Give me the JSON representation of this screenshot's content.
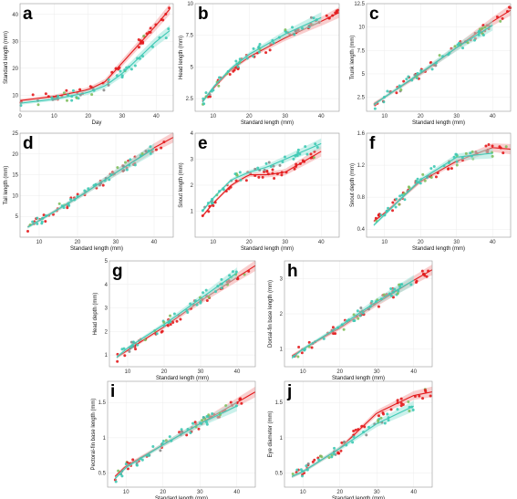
{
  "colors": {
    "red_series": "#e31a1c",
    "teal_series": "#3ec9b4",
    "red_band": "#f4a6a6",
    "teal_band": "#9fe6da",
    "green_marker": "#7fbf5f",
    "gray_marker": "#8c8c8c"
  },
  "chart_data": [
    {
      "id": "a",
      "type": "scatter",
      "xlabel": "Day",
      "ylabel": "Standard length (mm)",
      "xlim": [
        0,
        45
      ],
      "ylim": [
        4,
        44
      ],
      "xticks": [
        0,
        10,
        20,
        30,
        40
      ],
      "yticks": [
        10,
        20,
        30,
        40
      ],
      "series": [
        {
          "color": "red",
          "curve": [
            [
              0,
              8
            ],
            [
              10,
              9.5
            ],
            [
              20,
              12
            ],
            [
              25,
              15
            ],
            [
              30,
              22
            ],
            [
              35,
              29
            ],
            [
              40,
              36
            ],
            [
              44,
              42
            ]
          ]
        },
        {
          "color": "teal",
          "curve": [
            [
              0,
              7
            ],
            [
              10,
              8.5
            ],
            [
              20,
              11
            ],
            [
              25,
              13.5
            ],
            [
              30,
              18
            ],
            [
              35,
              24
            ],
            [
              40,
              30
            ],
            [
              44,
              34
            ]
          ]
        }
      ]
    },
    {
      "id": "b",
      "type": "scatter",
      "xlabel": "Standard length (mm)",
      "ylabel": "Head length (mm)",
      "xlim": [
        5,
        45
      ],
      "ylim": [
        1.5,
        10
      ],
      "xticks": [
        10,
        20,
        30,
        40
      ],
      "yticks": [
        2.5,
        5.0,
        7.5,
        10.0
      ],
      "series": [
        {
          "color": "red",
          "curve": [
            [
              7,
              2.3
            ],
            [
              10,
              3.3
            ],
            [
              15,
              4.8
            ],
            [
              20,
              5.8
            ],
            [
              30,
              7.3
            ],
            [
              40,
              8.6
            ],
            [
              45,
              9.3
            ]
          ]
        },
        {
          "color": "teal",
          "curve": [
            [
              7,
              2.2
            ],
            [
              10,
              3.4
            ],
            [
              15,
              4.9
            ],
            [
              20,
              6.0
            ],
            [
              30,
              7.6
            ],
            [
              40,
              8.9
            ]
          ]
        }
      ]
    },
    {
      "id": "c",
      "type": "scatter",
      "xlabel": "Standard length (mm)",
      "ylabel": "Trunk length (mm)",
      "xlim": [
        5,
        45
      ],
      "ylim": [
        1,
        12.5
      ],
      "xticks": [
        10,
        20,
        30,
        40
      ],
      "yticks": [
        2.5,
        5.0,
        7.5,
        10.0,
        12.5
      ],
      "series": [
        {
          "color": "red",
          "curve": [
            [
              7,
              1.8
            ],
            [
              10,
              2.5
            ],
            [
              20,
              5.0
            ],
            [
              30,
              7.8
            ],
            [
              40,
              10.6
            ],
            [
              45,
              11.8
            ]
          ]
        },
        {
          "color": "teal",
          "curve": [
            [
              7,
              1.7
            ],
            [
              10,
              2.5
            ],
            [
              20,
              5.1
            ],
            [
              30,
              7.8
            ],
            [
              40,
              10.2
            ]
          ]
        }
      ]
    },
    {
      "id": "d",
      "type": "scatter",
      "xlabel": "Standard length (mm)",
      "ylabel": "Tail length (mm)",
      "xlim": [
        5,
        45
      ],
      "ylim": [
        0,
        25
      ],
      "xticks": [
        10,
        20,
        30,
        40
      ],
      "yticks": [
        5,
        10,
        15,
        20,
        25
      ],
      "series": [
        {
          "color": "red",
          "curve": [
            [
              7,
              2.5
            ],
            [
              10,
              4.0
            ],
            [
              20,
              9.5
            ],
            [
              30,
              15.5
            ],
            [
              40,
              21.5
            ],
            [
              45,
              24
            ]
          ]
        },
        {
          "color": "teal",
          "curve": [
            [
              7,
              2.4
            ],
            [
              10,
              4.0
            ],
            [
              20,
              9.5
            ],
            [
              30,
              15.5
            ],
            [
              40,
              21.3
            ]
          ]
        }
      ]
    },
    {
      "id": "e",
      "type": "scatter",
      "xlabel": "Standard length (mm)",
      "ylabel": "Snout length (mm)",
      "xlim": [
        5,
        45
      ],
      "ylim": [
        0,
        4
      ],
      "xticks": [
        10,
        20,
        30,
        40
      ],
      "yticks": [
        1,
        2,
        3,
        4
      ],
      "series": [
        {
          "color": "red",
          "curve": [
            [
              7,
              0.8
            ],
            [
              10,
              1.3
            ],
            [
              15,
              2.0
            ],
            [
              20,
              2.4
            ],
            [
              25,
              2.4
            ],
            [
              30,
              2.5
            ],
            [
              35,
              2.9
            ],
            [
              40,
              3.3
            ]
          ]
        },
        {
          "color": "teal",
          "curve": [
            [
              7,
              1.0
            ],
            [
              10,
              1.5
            ],
            [
              15,
              2.2
            ],
            [
              20,
              2.5
            ],
            [
              25,
              2.7
            ],
            [
              30,
              3.0
            ],
            [
              35,
              3.3
            ],
            [
              40,
              3.6
            ]
          ]
        }
      ]
    },
    {
      "id": "f",
      "type": "scatter",
      "xlabel": "Standard length (mm)",
      "ylabel": "Snout depth (mm)",
      "xlim": [
        5,
        45
      ],
      "ylim": [
        0.3,
        1.6
      ],
      "xticks": [
        10,
        20,
        30,
        40
      ],
      "yticks": [
        0.4,
        0.8,
        1.2,
        1.6
      ],
      "series": [
        {
          "color": "red",
          "curve": [
            [
              7,
              0.5
            ],
            [
              10,
              0.6
            ],
            [
              15,
              0.8
            ],
            [
              20,
              1.0
            ],
            [
              30,
              1.25
            ],
            [
              40,
              1.42
            ],
            [
              45,
              1.4
            ]
          ]
        },
        {
          "color": "teal",
          "curve": [
            [
              7,
              0.45
            ],
            [
              10,
              0.58
            ],
            [
              15,
              0.8
            ],
            [
              20,
              1.02
            ],
            [
              30,
              1.3
            ],
            [
              40,
              1.35
            ]
          ]
        }
      ]
    },
    {
      "id": "g",
      "type": "scatter",
      "xlabel": "Standard length (mm)",
      "ylabel": "Head depth (mm)",
      "xlim": [
        5,
        45
      ],
      "ylim": [
        0.5,
        5
      ],
      "xticks": [
        10,
        20,
        30,
        40
      ],
      "yticks": [
        1,
        2,
        3,
        4,
        5
      ],
      "series": [
        {
          "color": "red",
          "curve": [
            [
              7,
              0.9
            ],
            [
              10,
              1.2
            ],
            [
              20,
              2.2
            ],
            [
              30,
              3.3
            ],
            [
              40,
              4.3
            ],
            [
              45,
              4.8
            ]
          ]
        },
        {
          "color": "teal",
          "curve": [
            [
              7,
              0.9
            ],
            [
              10,
              1.3
            ],
            [
              20,
              2.3
            ],
            [
              30,
              3.4
            ],
            [
              40,
              4.5
            ]
          ]
        }
      ]
    },
    {
      "id": "h",
      "type": "scatter",
      "xlabel": "Standard length (mm)",
      "ylabel": "Dorsal-fin base length (mm)",
      "xlim": [
        5,
        45
      ],
      "ylim": [
        0.5,
        3.5
      ],
      "xticks": [
        10,
        20,
        30,
        40
      ],
      "yticks": [
        1,
        2,
        3
      ],
      "series": [
        {
          "color": "red",
          "curve": [
            [
              7,
              0.8
            ],
            [
              10,
              1.0
            ],
            [
              20,
              1.6
            ],
            [
              30,
              2.3
            ],
            [
              40,
              2.95
            ],
            [
              45,
              3.25
            ]
          ]
        },
        {
          "color": "teal",
          "curve": [
            [
              7,
              0.75
            ],
            [
              10,
              1.0
            ],
            [
              20,
              1.65
            ],
            [
              30,
              2.35
            ],
            [
              40,
              2.95
            ]
          ]
        }
      ]
    },
    {
      "id": "i",
      "type": "scatter",
      "xlabel": "Standard length (mm)",
      "ylabel": "Pectoral-fin base length (mm)",
      "xlim": [
        5,
        45
      ],
      "ylim": [
        0.3,
        1.8
      ],
      "xticks": [
        10,
        20,
        30,
        40
      ],
      "yticks": [
        0.5,
        1.0,
        1.5
      ],
      "series": [
        {
          "color": "red",
          "curve": [
            [
              7,
              0.45
            ],
            [
              10,
              0.6
            ],
            [
              20,
              0.9
            ],
            [
              30,
              1.2
            ],
            [
              40,
              1.5
            ],
            [
              45,
              1.65
            ]
          ]
        },
        {
          "color": "teal",
          "curve": [
            [
              7,
              0.42
            ],
            [
              10,
              0.58
            ],
            [
              20,
              0.9
            ],
            [
              30,
              1.2
            ],
            [
              40,
              1.45
            ]
          ]
        }
      ]
    },
    {
      "id": "j",
      "type": "scatter",
      "xlabel": "Standard length (mm)",
      "ylabel": "Eye diameter (mm)",
      "xlim": [
        5,
        45
      ],
      "ylim": [
        0.3,
        1.8
      ],
      "xticks": [
        10,
        20,
        30,
        40
      ],
      "yticks": [
        0.5,
        1.0,
        1.5
      ],
      "series": [
        {
          "color": "red",
          "curve": [
            [
              7,
              0.45
            ],
            [
              10,
              0.52
            ],
            [
              20,
              0.85
            ],
            [
              30,
              1.35
            ],
            [
              40,
              1.6
            ],
            [
              45,
              1.65
            ]
          ]
        },
        {
          "color": "teal",
          "curve": [
            [
              7,
              0.45
            ],
            [
              10,
              0.52
            ],
            [
              20,
              0.85
            ],
            [
              30,
              1.2
            ],
            [
              40,
              1.45
            ]
          ]
        }
      ]
    }
  ]
}
